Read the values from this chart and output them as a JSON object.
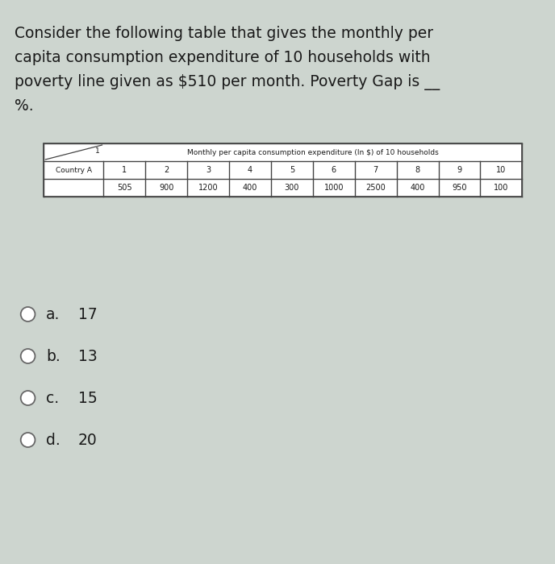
{
  "bg_color": "#cdd5cf",
  "text_color": "#1a1a1a",
  "question_lines": [
    "Consider the following table that gives the monthly per",
    "capita consumption expenditure of 10 households with",
    "poverty line given as $510 per month. Poverty Gap is __",
    "%."
  ],
  "question_fontsize": 13.5,
  "table_title": "Monthly per capita consumption expenditure (In $) of 10 households",
  "table_header_nums": [
    "1",
    "2",
    "3",
    "4",
    "5",
    "6",
    "7",
    "8",
    "9",
    "10"
  ],
  "table_row_label": "Country A",
  "table_values": [
    "505",
    "900",
    "1200",
    "400",
    "300",
    "1000",
    "2500",
    "400",
    "950",
    "100"
  ],
  "options": [
    {
      "label": "a.",
      "value": "17"
    },
    {
      "label": "b.",
      "value": "13"
    },
    {
      "label": "c.",
      "value": "15"
    },
    {
      "label": "d.",
      "value": "20"
    }
  ],
  "option_fontsize": 13.5,
  "table_border_color": "#444444",
  "table_bg": "white"
}
